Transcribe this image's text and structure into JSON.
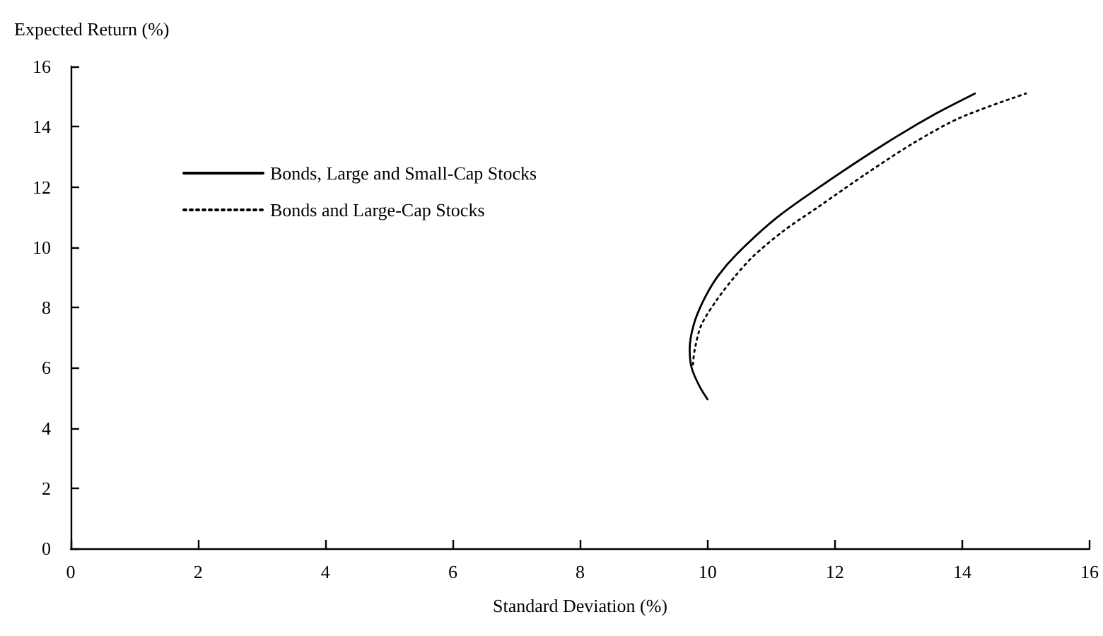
{
  "chart_data": {
    "type": "line",
    "xlabel": "Standard Deviation (%)",
    "ylabel": "Expected Return (%)",
    "series": [
      {
        "name": "Bonds, Large and Small-Cap Stocks",
        "color": "#000000",
        "line_style": "solid",
        "x": [
          10.0,
          9.87,
          9.75,
          9.72,
          9.78,
          9.93,
          10.15,
          10.45,
          11.1,
          11.9,
          12.8,
          13.6,
          14.2
        ],
        "values": [
          4.95,
          5.4,
          6.0,
          6.6,
          7.4,
          8.2,
          9.0,
          9.75,
          11.0,
          12.2,
          13.45,
          14.45,
          15.1
        ]
      },
      {
        "name": "Bonds and Large-Cap Stocks",
        "color": "#000000",
        "line_style": "dotted",
        "x": [
          9.77,
          9.8,
          9.9,
          10.13,
          10.42,
          10.72,
          11.2,
          11.75,
          12.5,
          13.23,
          13.97,
          15.0
        ],
        "values": [
          6.1,
          6.6,
          7.4,
          8.2,
          9.0,
          9.7,
          10.55,
          11.35,
          12.45,
          13.45,
          14.3,
          15.1
        ]
      }
    ],
    "xlim": [
      0,
      16
    ],
    "xticks": [
      0,
      2,
      4,
      6,
      8,
      10,
      12,
      14,
      16
    ],
    "ylim": [
      0,
      16
    ],
    "yticks": [
      0,
      2,
      4,
      6,
      8,
      10,
      12,
      14,
      16
    ],
    "marker": "none",
    "grid": false,
    "legend": "top left"
  }
}
